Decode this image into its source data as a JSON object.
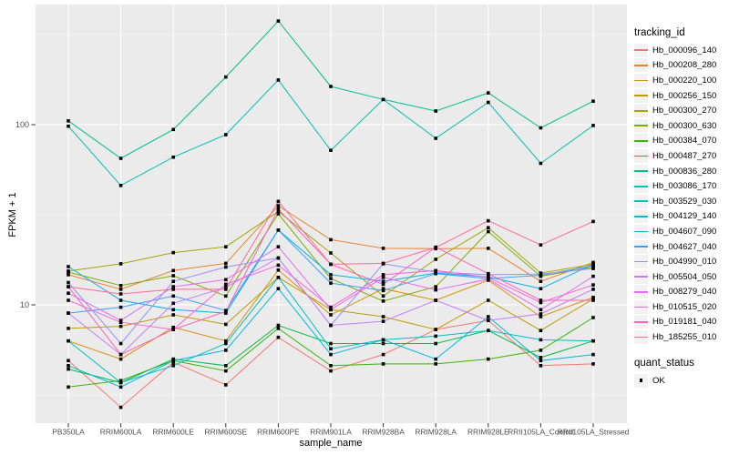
{
  "chart_data": {
    "type": "line",
    "xlabel": "sample_name",
    "ylabel": "FPKM + 1",
    "y_scale": "log10",
    "y_ticks": [
      10,
      100
    ],
    "y_tick_labels": [
      "10",
      "100"
    ],
    "y_minor_gridlines": [
      3.162,
      31.62,
      316.2
    ],
    "ylim": [
      2.2,
      460
    ],
    "grid": true,
    "panel_bg": "#EBEBEB",
    "grid_color": "#FFFFFF",
    "tick_text_color": "#4D4D4D",
    "point_marker": "black-square",
    "categories": [
      "PB350LA",
      "RRIM600LA",
      "RRIM600LE",
      "RRIM600SE",
      "RRIM600PE",
      "RRIM901LA",
      "RRIM928BA",
      "RRIM928LA",
      "RRIM928LE",
      "RRII105LA_Control",
      "RRII105LA_Stressed"
    ],
    "legend": {
      "title": "tracking_id",
      "position": "right"
    },
    "quant_legend": {
      "title": "quant_status",
      "items": [
        {
          "label": "OK",
          "marker": "black-square"
        }
      ]
    },
    "series": [
      {
        "name": "Hb_000096_140",
        "color": "#F8766D",
        "values": [
          4.9,
          2.7,
          4.8,
          3.6,
          6.6,
          4.3,
          5.3,
          7.3,
          8.2,
          4.6,
          4.7
        ]
      },
      {
        "name": "Hb_000208_280",
        "color": "#EA8331",
        "values": [
          14.7,
          12.2,
          15.5,
          17.0,
          35.5,
          23.0,
          20.6,
          20.5,
          20.6,
          13.5,
          17.2
        ]
      },
      {
        "name": "Hb_000220_100",
        "color": "#D89000",
        "values": [
          6.3,
          5.0,
          7.5,
          6.3,
          15.6,
          8.8,
          12.3,
          10.6,
          13.7,
          8.6,
          11.0
        ]
      },
      {
        "name": "Hb_000256_150",
        "color": "#C09B00",
        "values": [
          7.4,
          7.6,
          8.8,
          7.8,
          14.2,
          9.4,
          8.6,
          7.3,
          10.6,
          7.2,
          10.8
        ]
      },
      {
        "name": "Hb_000300_270",
        "color": "#A3A500",
        "values": [
          15.4,
          16.9,
          19.5,
          21.0,
          33.0,
          19.4,
          11.2,
          17.9,
          26.8,
          15.0,
          16.8
        ]
      },
      {
        "name": "Hb_000300_630",
        "color": "#7CAE00",
        "values": [
          15.2,
          12.8,
          14.5,
          11.2,
          32.0,
          14.0,
          10.5,
          12.6,
          25.5,
          14.4,
          16.2
        ]
      },
      {
        "name": "Hb_000384_070",
        "color": "#39B600",
        "values": [
          3.5,
          3.8,
          4.9,
          4.3,
          7.4,
          4.6,
          4.7,
          4.7,
          5.0,
          5.6,
          8.5
        ]
      },
      {
        "name": "Hb_000487_270",
        "color": "#00BB4E",
        "values": [
          4.4,
          3.7,
          5.0,
          4.6,
          7.7,
          6.1,
          6.1,
          6.1,
          7.2,
          5.1,
          6.3
        ]
      },
      {
        "name": "Hb_000836_280",
        "color": "#00C087",
        "values": [
          105,
          65,
          94,
          184,
          376,
          163,
          138,
          119,
          150,
          96,
          135
        ]
      },
      {
        "name": "Hb_003086_170",
        "color": "#00C0B2",
        "values": [
          98,
          46,
          66,
          88,
          177,
          72,
          138,
          84,
          133,
          61,
          99
        ]
      },
      {
        "name": "Hb_003529_030",
        "color": "#00BFC4",
        "values": [
          6.3,
          3.7,
          4.6,
          6.1,
          14.2,
          5.7,
          6.4,
          6.7,
          7.2,
          6.4,
          6.3
        ]
      },
      {
        "name": "Hb_004129_140",
        "color": "#00BAE0",
        "values": [
          4.6,
          3.5,
          4.9,
          5.6,
          12.3,
          5.3,
          6.4,
          5.0,
          8.6,
          4.9,
          5.3
        ]
      },
      {
        "name": "Hb_004607_090",
        "color": "#00B0F6",
        "values": [
          16.3,
          10.6,
          9.4,
          9.0,
          26.0,
          14.7,
          13.5,
          15.0,
          14.3,
          12.3,
          16.8
        ]
      },
      {
        "name": "Hb_004627_040",
        "color": "#35A2FF",
        "values": [
          9.0,
          9.7,
          11.2,
          9.3,
          26.0,
          13.2,
          12.0,
          14.9,
          14.0,
          14.6,
          16.5
        ]
      },
      {
        "name": "Hb_004990_010",
        "color": "#9590FF",
        "values": [
          13.3,
          6.1,
          13.5,
          16.2,
          18.2,
          7.7,
          16.9,
          15.2,
          14.7,
          14.8,
          15.9
        ]
      },
      {
        "name": "Hb_005504_050",
        "color": "#C77CFF",
        "values": [
          9.0,
          5.3,
          10.2,
          12.5,
          18.2,
          7.7,
          8.1,
          10.6,
          8.2,
          8.9,
          12.2
        ]
      },
      {
        "name": "Hb_008279_040",
        "color": "#E76BF3",
        "values": [
          11.6,
          8.2,
          12.6,
          13.8,
          21.0,
          9.4,
          14.2,
          12.1,
          13.9,
          9.4,
          14.4
        ]
      },
      {
        "name": "Hb_010515_020",
        "color": "#FA62DB",
        "values": [
          10.6,
          8.0,
          7.3,
          13.0,
          16.6,
          9.7,
          14.7,
          15.5,
          14.2,
          10.3,
          12.9
        ]
      },
      {
        "name": "Hb_019181_040",
        "color": "#FF62BC",
        "values": [
          12.6,
          5.3,
          7.3,
          9.2,
          34.0,
          16.8,
          13.0,
          20.9,
          14.9,
          10.6,
          10.6
        ]
      },
      {
        "name": "Hb_185255_010",
        "color": "#FF6A98",
        "values": [
          12.6,
          11.5,
          12.2,
          12.2,
          37.5,
          16.8,
          17.0,
          20.8,
          29.3,
          21.5,
          29.0
        ]
      }
    ]
  }
}
